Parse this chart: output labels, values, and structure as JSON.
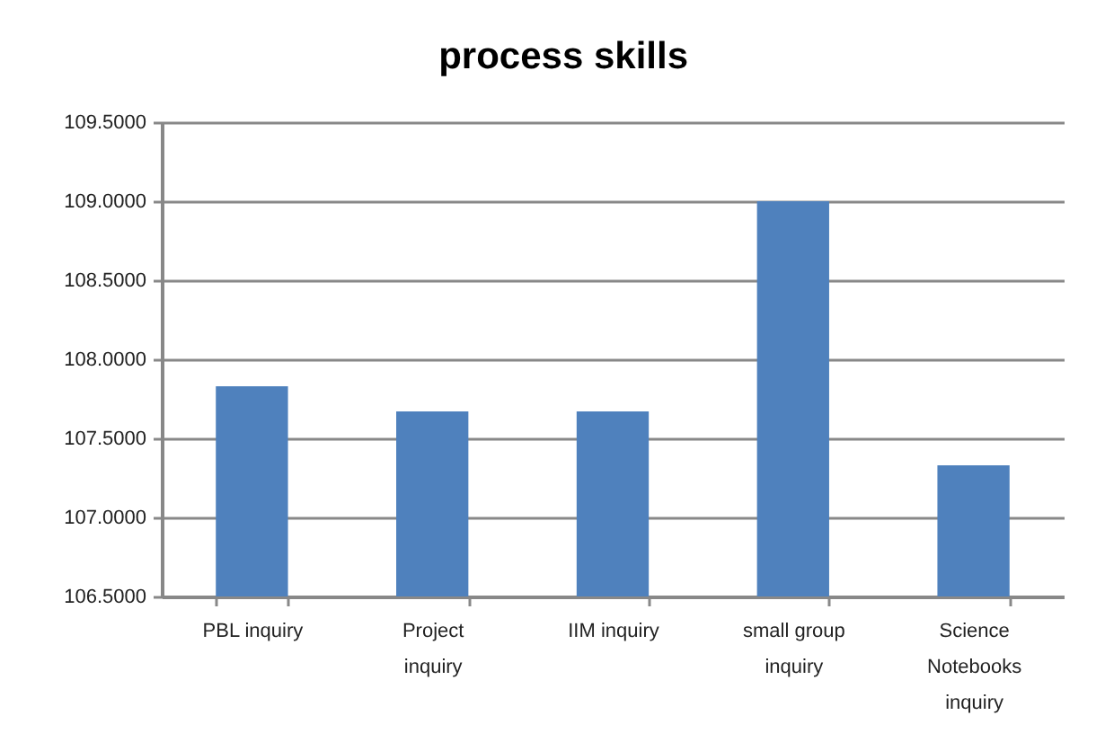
{
  "chart_data": {
    "type": "bar",
    "title": "process skills",
    "categories": [
      "PBL inquiry",
      "Project inquiry",
      "IIM inquiry",
      "small group inquiry",
      "Science Notebooks inquiry"
    ],
    "values": [
      107.83,
      107.67,
      107.67,
      109.0,
      107.33
    ],
    "color": "#4f81bd",
    "ylim": [
      106.5,
      109.5
    ],
    "yticks": [
      {
        "value": 106.5,
        "label": "106.5000"
      },
      {
        "value": 107,
        "label": "107.0000"
      },
      {
        "value": 107.5,
        "label": "107.5000"
      },
      {
        "value": 108,
        "label": "108.0000"
      },
      {
        "value": 108.5,
        "label": "108.5000"
      },
      {
        "value": 109,
        "label": "109.0000"
      },
      {
        "value": 109.5,
        "label": "109.5000"
      }
    ],
    "grid": "y"
  }
}
